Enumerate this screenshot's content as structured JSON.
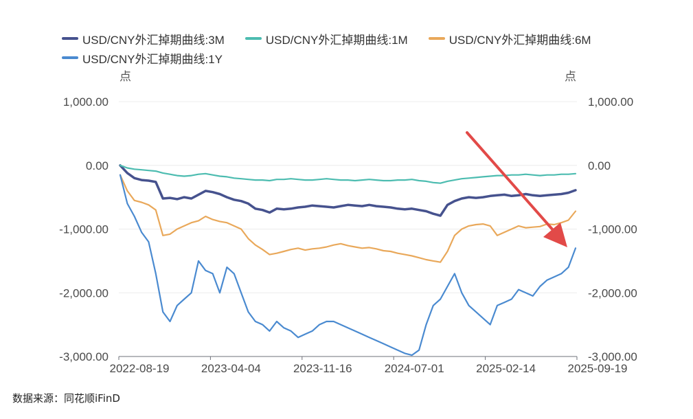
{
  "chart_data": {
    "type": "line",
    "unit_left": "点",
    "unit_right": "点",
    "ylim": [
      -3000,
      1000
    ],
    "y_ticks": [
      "1,000.00",
      "0.00",
      "-1,000.00",
      "-2,000.00",
      "-3,000.00"
    ],
    "y_tick_values": [
      1000,
      0,
      -1000,
      -2000,
      -3000
    ],
    "x_ticks": [
      "2022-08-19",
      "2023-04-04",
      "2023-11-16",
      "2024-07-01",
      "2025-02-14",
      "2025-09-19"
    ],
    "grid": true,
    "legend_position": "top-left",
    "series": [
      {
        "name": "USD/CNY外汇掉期曲线:3M",
        "color": "#46528e",
        "values": [
          0,
          -120,
          -200,
          -230,
          -240,
          -260,
          -520,
          -510,
          -530,
          -500,
          -520,
          -460,
          -400,
          -420,
          -450,
          -500,
          -540,
          -560,
          -600,
          -680,
          -700,
          -740,
          -680,
          -690,
          -680,
          -660,
          -650,
          -630,
          -640,
          -650,
          -660,
          -640,
          -620,
          -630,
          -640,
          -620,
          -640,
          -650,
          -660,
          -680,
          -690,
          -680,
          -700,
          -720,
          -760,
          -790,
          -620,
          -560,
          -520,
          -500,
          -510,
          -500,
          -480,
          -470,
          -460,
          -480,
          -470,
          -450,
          -470,
          -480,
          -470,
          -460,
          -450,
          -430,
          -390
        ]
      },
      {
        "name": "USD/CNY外汇掉期曲线:1M",
        "color": "#4cbcb0",
        "values": [
          0,
          -40,
          -60,
          -70,
          -80,
          -90,
          -120,
          -140,
          -160,
          -170,
          -160,
          -140,
          -130,
          -150,
          -170,
          -180,
          -200,
          -210,
          -220,
          -230,
          -230,
          -240,
          -220,
          -220,
          -210,
          -220,
          -230,
          -230,
          -220,
          -210,
          -220,
          -230,
          -230,
          -240,
          -230,
          -220,
          -230,
          -240,
          -240,
          -230,
          -230,
          -220,
          -240,
          -250,
          -270,
          -280,
          -250,
          -230,
          -210,
          -200,
          -190,
          -180,
          -170,
          -160,
          -160,
          -150,
          -150,
          -140,
          -150,
          -160,
          -150,
          -150,
          -140,
          -140,
          -130
        ]
      },
      {
        "name": "USD/CNY外汇掉期曲线:6M",
        "color": "#e9a85a",
        "values": [
          -150,
          -400,
          -550,
          -580,
          -620,
          -700,
          -1100,
          -1080,
          -1000,
          -950,
          -900,
          -870,
          -800,
          -850,
          -880,
          -900,
          -950,
          -1000,
          -1150,
          -1250,
          -1320,
          -1400,
          -1380,
          -1350,
          -1320,
          -1300,
          -1330,
          -1310,
          -1300,
          -1280,
          -1250,
          -1230,
          -1260,
          -1280,
          -1300,
          -1290,
          -1310,
          -1340,
          -1350,
          -1380,
          -1400,
          -1420,
          -1450,
          -1480,
          -1500,
          -1520,
          -1350,
          -1100,
          -1000,
          -950,
          -930,
          -920,
          -950,
          -1100,
          -1050,
          -1000,
          -950,
          -980,
          -970,
          -960,
          -920,
          -930,
          -900,
          -860,
          -720
        ]
      },
      {
        "name": "USD/CNY外汇掉期曲线:1Y",
        "color": "#4a8ad0",
        "values": [
          -150,
          -600,
          -800,
          -1050,
          -1200,
          -1700,
          -2300,
          -2450,
          -2200,
          -2100,
          -2000,
          -1500,
          -1650,
          -1700,
          -2000,
          -1600,
          -1700,
          -2000,
          -2300,
          -2450,
          -2500,
          -2600,
          -2450,
          -2550,
          -2600,
          -2700,
          -2650,
          -2600,
          -2500,
          -2450,
          -2450,
          -2500,
          -2550,
          -2600,
          -2650,
          -2700,
          -2750,
          -2800,
          -2850,
          -2900,
          -2950,
          -2980,
          -2900,
          -2500,
          -2200,
          -2100,
          -1900,
          -1700,
          -2000,
          -2200,
          -2300,
          -2400,
          -2500,
          -2200,
          -2150,
          -2100,
          -1950,
          -2000,
          -2050,
          -1900,
          -1800,
          -1750,
          -1700,
          -1600,
          -1300
        ]
      }
    ]
  },
  "source": "数据来源：同花顺iFinD"
}
